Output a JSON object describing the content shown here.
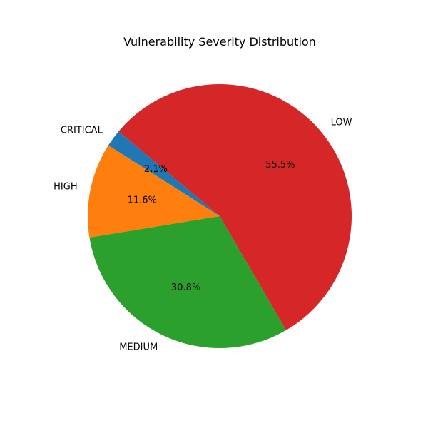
{
  "chart_data": {
    "type": "pie",
    "title": "Vulnerability Severity Distribution",
    "start_angle_deg": 140,
    "direction": "counterclockwise",
    "slices": [
      {
        "label": "CRITICAL",
        "value": 2.1,
        "pct_label": "2.1%",
        "color": "#1f77b4"
      },
      {
        "label": "HIGH",
        "value": 11.6,
        "pct_label": "11.6%",
        "color": "#ff7f0e"
      },
      {
        "label": "MEDIUM",
        "value": 30.8,
        "pct_label": "30.8%",
        "color": "#2ca02c"
      },
      {
        "label": "LOW",
        "value": 55.5,
        "pct_label": "55.5%",
        "color": "#d62728"
      }
    ]
  }
}
